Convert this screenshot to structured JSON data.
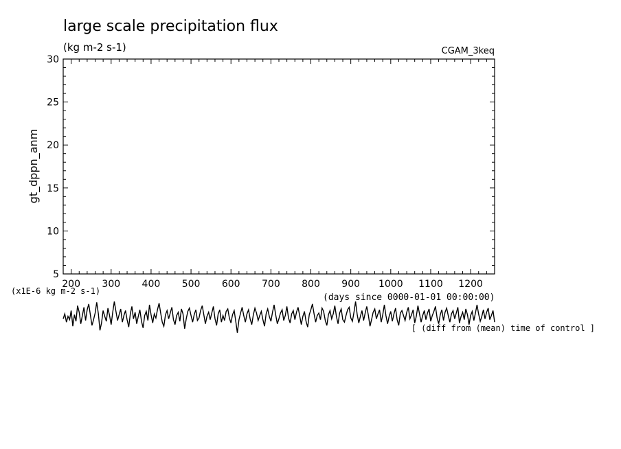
{
  "chart_data": {
    "type": "line",
    "title": "large scale precipitation flux",
    "subtitle": "(kg m-2 s-1)",
    "experiment_label": "CGAM_3keq",
    "ylabel": "gt_dppn_anm",
    "xlabel": "(days since 0000-01-01 00:00:00)",
    "data_units_label": "(x1E-6 kg m-2 s-1)",
    "footnote": "[ (diff from (mean) time of control ]",
    "xlim": [
      180,
      1260
    ],
    "ylim": [
      5,
      30
    ],
    "x_ticks": [
      200,
      300,
      400,
      500,
      600,
      700,
      800,
      900,
      1000,
      1100,
      1200
    ],
    "y_ticks": [
      5,
      10,
      15,
      20,
      25,
      30
    ],
    "grid": false,
    "series": [
      {
        "name": "",
        "x_start": 180,
        "x_step": 4,
        "values": [
          -0.2,
          0.4,
          -0.6,
          0.1,
          -0.3,
          0.8,
          -1.1,
          0.3,
          -0.5,
          1.4,
          0.6,
          -0.8,
          0.2,
          1.2,
          -0.4,
          0.9,
          1.6,
          0.3,
          -1.0,
          -0.3,
          0.5,
          1.8,
          0.4,
          -1.6,
          -0.7,
          0.8,
          0.1,
          -0.5,
          1.1,
          0.2,
          -0.9,
          0.6,
          1.9,
          0.7,
          -0.4,
          0.3,
          1.0,
          -0.6,
          0.2,
          0.8,
          -0.3,
          -1.2,
          0.4,
          1.3,
          -0.2,
          0.6,
          -0.8,
          0.1,
          0.9,
          -0.5,
          -1.3,
          0.2,
          0.7,
          -0.4,
          1.5,
          0.3,
          -0.7,
          0.4,
          -0.1,
          0.9,
          1.7,
          0.5,
          -0.6,
          -1.1,
          0.3,
          0.8,
          -0.2,
          0.5,
          1.2,
          -0.3,
          -0.9,
          0.2,
          0.6,
          -0.5,
          1.0,
          0.4,
          -1.4,
          -0.2,
          0.7,
          1.1,
          0.2,
          -0.6,
          0.3,
          0.9,
          -0.4,
          -0.1,
          0.8,
          1.4,
          0.3,
          -0.8,
          0.1,
          0.6,
          -0.3,
          0.5,
          1.3,
          -0.2,
          -1.0,
          0.4,
          0.9,
          -0.6,
          0.2,
          -0.4,
          0.7,
          1.0,
          -0.1,
          -0.7,
          0.3,
          0.8,
          -0.5,
          -1.9,
          -0.3,
          0.5,
          1.2,
          0.2,
          -0.6,
          0.4,
          0.9,
          -0.2,
          -0.9,
          0.3,
          1.1,
          0.5,
          -0.4,
          0.2,
          0.7,
          -0.3,
          -1.1,
          0.4,
          1.0,
          0.1,
          -0.5,
          0.6,
          1.5,
          0.3,
          -0.8,
          -0.2,
          0.5,
          0.9,
          -0.4,
          0.2,
          1.3,
          -0.1,
          -0.7,
          0.4,
          0.8,
          -0.3,
          0.6,
          1.2,
          0.2,
          -0.9,
          0.1,
          0.7,
          -0.5,
          -1.2,
          0.3,
          0.9,
          1.6,
          0.4,
          -0.6,
          0.2,
          0.5,
          -0.3,
          1.1,
          0.7,
          -0.4,
          -1.0,
          0.3,
          0.8,
          -0.2,
          0.4,
          1.4,
          0.1,
          -0.8,
          0.5,
          1.0,
          -0.3,
          -0.6,
          0.2,
          0.9,
          1.2,
          -0.1,
          -0.5,
          0.6,
          1.9,
          0.3,
          -0.7,
          0.1,
          0.8,
          -0.4,
          0.5,
          1.3,
          0.2,
          -1.1,
          -0.3,
          0.6,
          1.0,
          -0.2,
          0.4,
          0.9,
          -0.6,
          0.3,
          1.5,
          0.2,
          -0.8,
          0.1,
          0.7,
          -0.5,
          0.4,
          1.1,
          -0.3,
          -1.0,
          0.5,
          0.8,
          0.2,
          -0.4,
          0.6,
          1.2,
          -0.2,
          0.3,
          0.9,
          -0.7,
          0.1,
          1.4,
          0.4,
          -0.6,
          0.2,
          0.8,
          -0.3,
          0.5,
          1.0,
          -0.5,
          0.2,
          0.7,
          1.3,
          -0.1,
          -0.8,
          0.3,
          0.9,
          -0.4,
          0.6,
          1.1,
          0.2,
          -0.6,
          0.4,
          0.8,
          -0.2,
          0.5,
          1.2,
          -0.7,
          0.1,
          0.6,
          -0.3,
          1.0,
          0.3,
          -0.9,
          0.2,
          0.7,
          -0.4,
          0.5,
          1.5,
          0.4,
          -0.5,
          0.1,
          0.9,
          -0.2,
          0.6,
          1.1,
          -0.3,
          0.2,
          0.8,
          -0.6,
          0.4,
          1.0,
          0.3,
          -0.4,
          0.5,
          0.9,
          -0.8,
          -0.2
        ]
      }
    ]
  }
}
